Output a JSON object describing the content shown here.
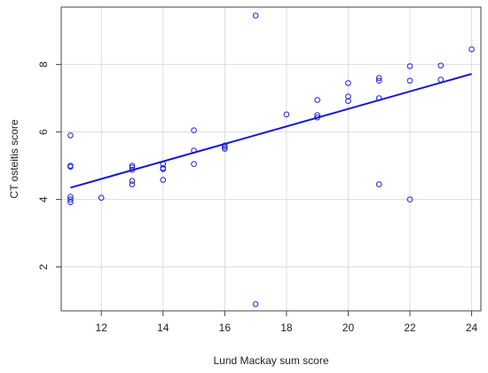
{
  "chart_data": {
    "type": "scatter",
    "title": "",
    "xlabel": "Lund Mackay sum score",
    "ylabel": "CT osteitis score",
    "xlim": [
      10.7,
      24.3
    ],
    "ylim": [
      0.7,
      9.7
    ],
    "xticks": [
      12,
      14,
      16,
      18,
      20,
      22,
      24
    ],
    "yticks": [
      2,
      4,
      6,
      8
    ],
    "grid": true,
    "colors": {
      "points": "#1f1fe6",
      "line": "#1515d4",
      "grid": "#dddddd",
      "axis": "#444444"
    },
    "points": [
      {
        "x": 11,
        "y": 5.9
      },
      {
        "x": 11,
        "y": 5.0
      },
      {
        "x": 11,
        "y": 4.97
      },
      {
        "x": 11,
        "y": 4.08
      },
      {
        "x": 11,
        "y": 4.0
      },
      {
        "x": 11,
        "y": 3.92
      },
      {
        "x": 12,
        "y": 4.05
      },
      {
        "x": 13,
        "y": 5.0
      },
      {
        "x": 13,
        "y": 4.95
      },
      {
        "x": 13,
        "y": 4.88
      },
      {
        "x": 13,
        "y": 4.55
      },
      {
        "x": 13,
        "y": 4.45
      },
      {
        "x": 14,
        "y": 5.05
      },
      {
        "x": 14,
        "y": 4.93
      },
      {
        "x": 14,
        "y": 4.9
      },
      {
        "x": 14,
        "y": 4.58
      },
      {
        "x": 15,
        "y": 6.05
      },
      {
        "x": 15,
        "y": 5.45
      },
      {
        "x": 15,
        "y": 5.05
      },
      {
        "x": 16,
        "y": 5.6
      },
      {
        "x": 16,
        "y": 5.55
      },
      {
        "x": 16,
        "y": 5.5
      },
      {
        "x": 17,
        "y": 9.45
      },
      {
        "x": 17,
        "y": 0.9
      },
      {
        "x": 18,
        "y": 6.52
      },
      {
        "x": 19,
        "y": 6.95
      },
      {
        "x": 19,
        "y": 6.5
      },
      {
        "x": 19,
        "y": 6.43
      },
      {
        "x": 20,
        "y": 7.45
      },
      {
        "x": 20,
        "y": 7.05
      },
      {
        "x": 20,
        "y": 6.92
      },
      {
        "x": 21,
        "y": 7.6
      },
      {
        "x": 21,
        "y": 7.52
      },
      {
        "x": 21,
        "y": 7.0
      },
      {
        "x": 21,
        "y": 4.45
      },
      {
        "x": 22,
        "y": 7.95
      },
      {
        "x": 22,
        "y": 7.52
      },
      {
        "x": 22,
        "y": 4.0
      },
      {
        "x": 23,
        "y": 7.97
      },
      {
        "x": 23,
        "y": 7.55
      },
      {
        "x": 24,
        "y": 8.45
      }
    ],
    "regression_line": {
      "x": [
        11,
        24
      ],
      "y": [
        4.35,
        7.72
      ]
    }
  }
}
